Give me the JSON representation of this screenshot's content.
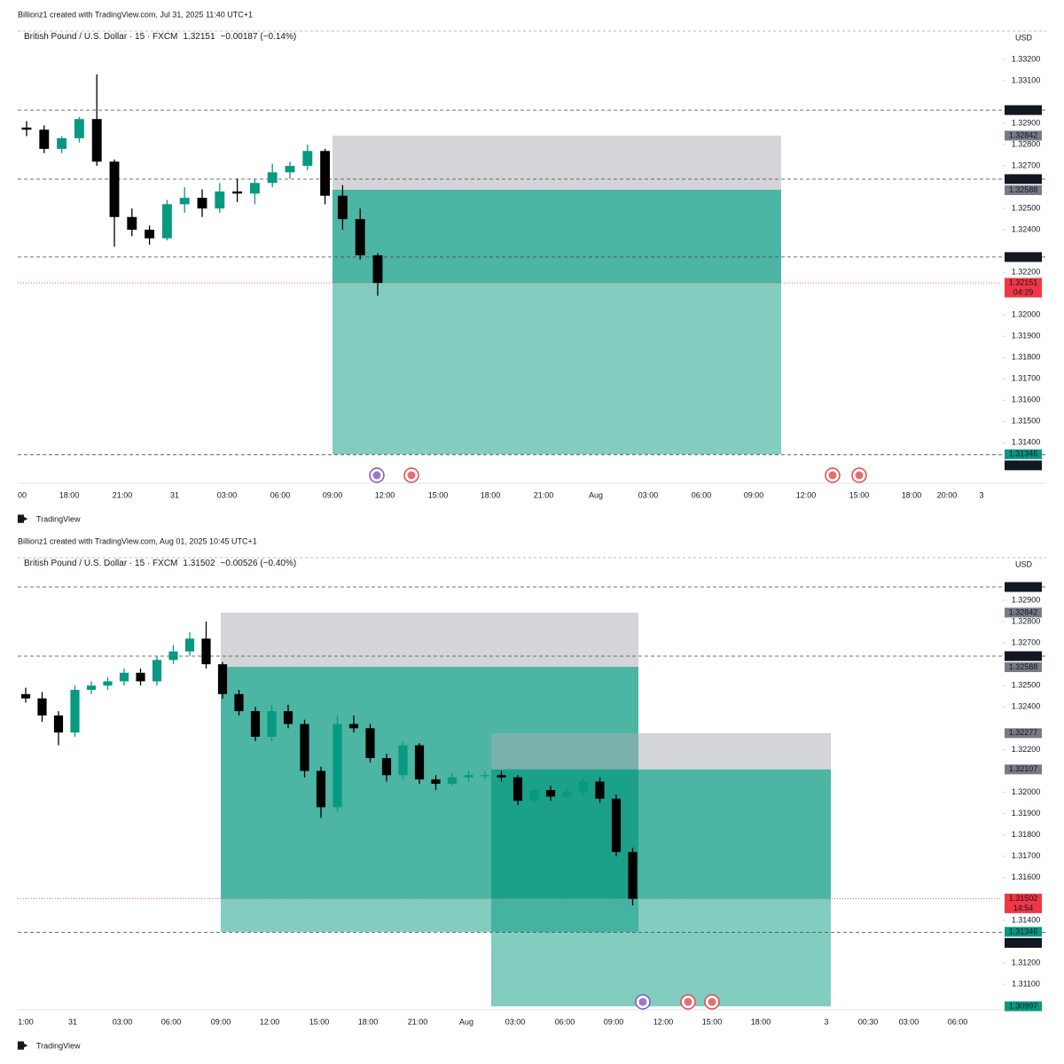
{
  "chart_data": [
    {
      "type": "candlestick",
      "caption": "Billionz1 created with TradingView.com, Jul 31, 2025 11:40 UTC+1",
      "symbol": "British Pound / U.S. Dollar · 15 · FXCM",
      "last": "1.32151",
      "change": "−0.00187 (−0.14%)",
      "currency": "USD",
      "branding": "TradingView",
      "up_color": "#089981",
      "down_color": "#000000",
      "open": [
        1.3288,
        1.3287,
        1.3278,
        1.3283,
        1.3292,
        1.3272,
        1.3246,
        1.324,
        1.3236,
        1.3252,
        1.3255,
        1.325,
        1.3258,
        1.3257,
        1.3262,
        1.3267,
        1.327,
        1.3277,
        1.3256,
        1.3245,
        1.3228
      ],
      "high": [
        1.3291,
        1.3289,
        1.3284,
        1.3293,
        1.3313,
        1.3273,
        1.325,
        1.3242,
        1.3254,
        1.326,
        1.3259,
        1.3262,
        1.3264,
        1.3264,
        1.3271,
        1.3272,
        1.328,
        1.3278,
        1.3261,
        1.325,
        1.3229
      ],
      "low": [
        1.3284,
        1.3276,
        1.3276,
        1.3281,
        1.327,
        1.3232,
        1.3237,
        1.3233,
        1.3235,
        1.3248,
        1.3246,
        1.3248,
        1.3253,
        1.3252,
        1.326,
        1.3264,
        1.3268,
        1.3252,
        1.324,
        1.3226,
        1.3209
      ],
      "close": [
        1.3287,
        1.3278,
        1.3283,
        1.3292,
        1.3272,
        1.3246,
        1.324,
        1.3236,
        1.3252,
        1.3255,
        1.325,
        1.3258,
        1.3257,
        1.3262,
        1.3267,
        1.327,
        1.3277,
        1.3256,
        1.3245,
        1.3228,
        1.3215
      ],
      "ylim": [
        1.3121,
        1.33354
      ],
      "yticks": [
        {
          "value": 1.332,
          "label": "1.33200"
        },
        {
          "value": 1.331,
          "label": "1.33100"
        },
        {
          "value": 1.329,
          "label": "1.32900"
        },
        {
          "value": 1.328,
          "label": "1.32800"
        },
        {
          "value": 1.327,
          "label": "1.32700"
        },
        {
          "value": 1.325,
          "label": "1.32500"
        },
        {
          "value": 1.324,
          "label": "1.32400"
        },
        {
          "value": 1.322,
          "label": "1.32200"
        },
        {
          "value": 1.32,
          "label": "1.32000"
        },
        {
          "value": 1.319,
          "label": "1.31900"
        },
        {
          "value": 1.318,
          "label": "1.31800"
        },
        {
          "value": 1.317,
          "label": "1.31700"
        },
        {
          "value": 1.316,
          "label": "1.31600"
        },
        {
          "value": 1.315,
          "label": "1.31500"
        },
        {
          "value": 1.314,
          "label": "1.31400"
        }
      ],
      "x_labels": [
        "00",
        "18:00",
        "21:00",
        "31",
        "03:00",
        "06:00",
        "09:00",
        "12:00",
        "15:00",
        "18:00",
        "21:00",
        "Aug",
        "03:00",
        "06:00",
        "09:00",
        "12:00",
        "15:00",
        "18:00",
        "20:00",
        "3"
      ],
      "levels": [
        1.32962,
        1.32638,
        1.32272,
        1.31344
      ],
      "positions": [
        {
          "stop": 1.32842,
          "entry": 1.32588,
          "target": 1.31346
        }
      ],
      "current": {
        "value": 1.32151,
        "countdown": "04:29",
        "color": "#f23645"
      }
    },
    {
      "type": "candlestick",
      "caption": "Billionz1 created with TradingView.com, Aug 01, 2025 10:45 UTC+1",
      "symbol": "British Pound / U.S. Dollar · 15 · FXCM",
      "last": "1.31502",
      "change": "−0.00526 (−0.40%)",
      "currency": "USD",
      "branding": "TradingView",
      "up_color": "#089981",
      "down_color": "#000000",
      "open": [
        1.3246,
        1.3244,
        1.3236,
        1.3228,
        1.3248,
        1.325,
        1.3252,
        1.3256,
        1.3252,
        1.3262,
        1.3266,
        1.3272,
        1.326,
        1.3246,
        1.3238,
        1.3226,
        1.3238,
        1.3232,
        1.321,
        1.3193,
        1.3232,
        1.323,
        1.3216,
        1.3208,
        1.3222,
        1.3206,
        1.3204,
        1.3207,
        1.3208,
        1.3208,
        1.3207,
        1.3196,
        1.3201,
        1.3198,
        1.32,
        1.3205,
        1.3197,
        1.3172
      ],
      "high": [
        1.3249,
        1.3247,
        1.3238,
        1.325,
        1.3252,
        1.3254,
        1.3258,
        1.3258,
        1.3264,
        1.3269,
        1.3275,
        1.328,
        1.3261,
        1.3248,
        1.324,
        1.3241,
        1.3241,
        1.3234,
        1.3212,
        1.3236,
        1.3236,
        1.3232,
        1.3218,
        1.3224,
        1.3223,
        1.3208,
        1.3209,
        1.321,
        1.321,
        1.321,
        1.3208,
        1.3203,
        1.3203,
        1.3202,
        1.3207,
        1.3207,
        1.3199,
        1.3174
      ],
      "low": [
        1.3242,
        1.3233,
        1.3222,
        1.3226,
        1.3246,
        1.3248,
        1.325,
        1.325,
        1.325,
        1.326,
        1.3264,
        1.3258,
        1.3244,
        1.3236,
        1.3224,
        1.3224,
        1.323,
        1.3207,
        1.3188,
        1.3191,
        1.3228,
        1.3214,
        1.3205,
        1.3206,
        1.3204,
        1.3201,
        1.3203,
        1.3205,
        1.3206,
        1.3205,
        1.3194,
        1.3195,
        1.3196,
        1.3197,
        1.3198,
        1.3195,
        1.317,
        1.3147
      ],
      "close": [
        1.3244,
        1.3236,
        1.3228,
        1.3248,
        1.325,
        1.3252,
        1.3256,
        1.3252,
        1.3262,
        1.3266,
        1.3272,
        1.326,
        1.3246,
        1.3238,
        1.3226,
        1.3238,
        1.3232,
        1.321,
        1.3193,
        1.3232,
        1.323,
        1.3216,
        1.3208,
        1.3222,
        1.3206,
        1.3204,
        1.3207,
        1.3208,
        1.3208,
        1.3207,
        1.3196,
        1.3201,
        1.3198,
        1.32,
        1.3205,
        1.3197,
        1.3172,
        1.315
      ],
      "ylim": [
        1.3098,
        1.3312
      ],
      "yticks": [
        {
          "value": 1.329,
          "label": "1.32900"
        },
        {
          "value": 1.328,
          "label": "1.32800"
        },
        {
          "value": 1.327,
          "label": "1.32700"
        },
        {
          "value": 1.325,
          "label": "1.32500"
        },
        {
          "value": 1.324,
          "label": "1.32400"
        },
        {
          "value": 1.322,
          "label": "1.32200"
        },
        {
          "value": 1.32,
          "label": "1.32000"
        },
        {
          "value": 1.319,
          "label": "1.31900"
        },
        {
          "value": 1.318,
          "label": "1.31800"
        },
        {
          "value": 1.317,
          "label": "1.31700"
        },
        {
          "value": 1.316,
          "label": "1.31600"
        },
        {
          "value": 1.314,
          "label": "1.31400"
        },
        {
          "value": 1.312,
          "label": "1.31200"
        },
        {
          "value": 1.311,
          "label": "1.31100"
        }
      ],
      "x_labels": [
        "1:00",
        "31",
        "03:00",
        "06:00",
        "09:00",
        "12:00",
        "15:00",
        "18:00",
        "21:00",
        "Aug",
        "03:00",
        "06:00",
        "09:00",
        "12:00",
        "15:00",
        "18:00",
        "3",
        "00:30",
        "03:00",
        "06:00"
      ],
      "levels": [
        1.32962,
        1.32638,
        1.31344
      ],
      "positions": [
        {
          "stop": 1.32842,
          "entry": 1.32588,
          "target": 1.31346
        },
        {
          "stop": 1.32277,
          "entry": 1.32107,
          "target": 1.30997
        }
      ],
      "current": {
        "value": 1.31502,
        "countdown": "14:54",
        "color": "#f23645"
      }
    }
  ]
}
